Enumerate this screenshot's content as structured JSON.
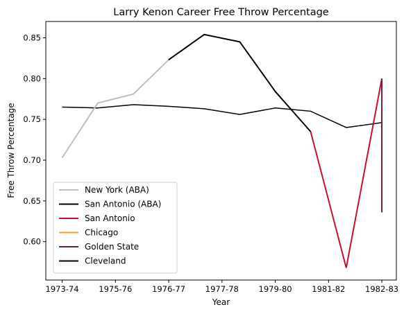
{
  "chart_data": {
    "type": "line",
    "title": "Larry Kenon Career Free Throw Percentage",
    "xlabel": "Year",
    "ylabel": "Free Throw Percentage",
    "x_tick_labels": [
      "1973-74",
      "1975-76",
      "1976-77",
      "1977-78",
      "1979-80",
      "1981-82",
      "1982-83"
    ],
    "ylim": [
      0.553,
      0.87
    ],
    "y_ticks": [
      0.6,
      0.65,
      0.7,
      0.75,
      0.8,
      0.85
    ],
    "y_tick_labels": [
      "0.60",
      "0.65",
      "0.70",
      "0.75",
      "0.80",
      "0.85"
    ],
    "grid": false,
    "legend_position": "lower-left",
    "series": [
      {
        "name": "New York (ABA)",
        "color": "#bebebe",
        "points": [
          [
            0.0,
            0.703
          ],
          [
            0.98,
            0.77
          ],
          [
            1.96,
            0.781
          ],
          [
            2.93,
            0.823
          ]
        ]
      },
      {
        "name": "San Antonio (ABA)",
        "color": "#000000",
        "points": [
          [
            2.93,
            0.823
          ],
          [
            3.91,
            0.854
          ],
          [
            4.89,
            0.845
          ],
          [
            5.87,
            0.784
          ],
          [
            6.84,
            0.735
          ]
        ]
      },
      {
        "name": "San Antonio",
        "color": "#c8102e",
        "points": [
          [
            6.84,
            0.735
          ],
          [
            7.82,
            0.568
          ],
          [
            8.8,
            0.8
          ]
        ]
      },
      {
        "name": "Chicago",
        "color": "#f9a01b",
        "points": [
          [
            8.8,
            0.762
          ],
          [
            8.8,
            0.636
          ]
        ]
      },
      {
        "name": "Golden State",
        "color": "#6b1e3c",
        "points": [
          [
            8.8,
            0.8
          ],
          [
            8.8,
            0.636
          ]
        ]
      },
      {
        "name": "Cleveland",
        "color": "#000000",
        "points": [
          [
            0.0,
            0.765
          ],
          [
            0.98,
            0.764
          ],
          [
            1.96,
            0.768
          ],
          [
            2.93,
            0.766
          ],
          [
            3.91,
            0.763
          ],
          [
            4.89,
            0.756
          ],
          [
            5.87,
            0.764
          ],
          [
            6.84,
            0.76
          ],
          [
            7.82,
            0.74
          ],
          [
            8.8,
            0.746
          ]
        ]
      }
    ]
  }
}
